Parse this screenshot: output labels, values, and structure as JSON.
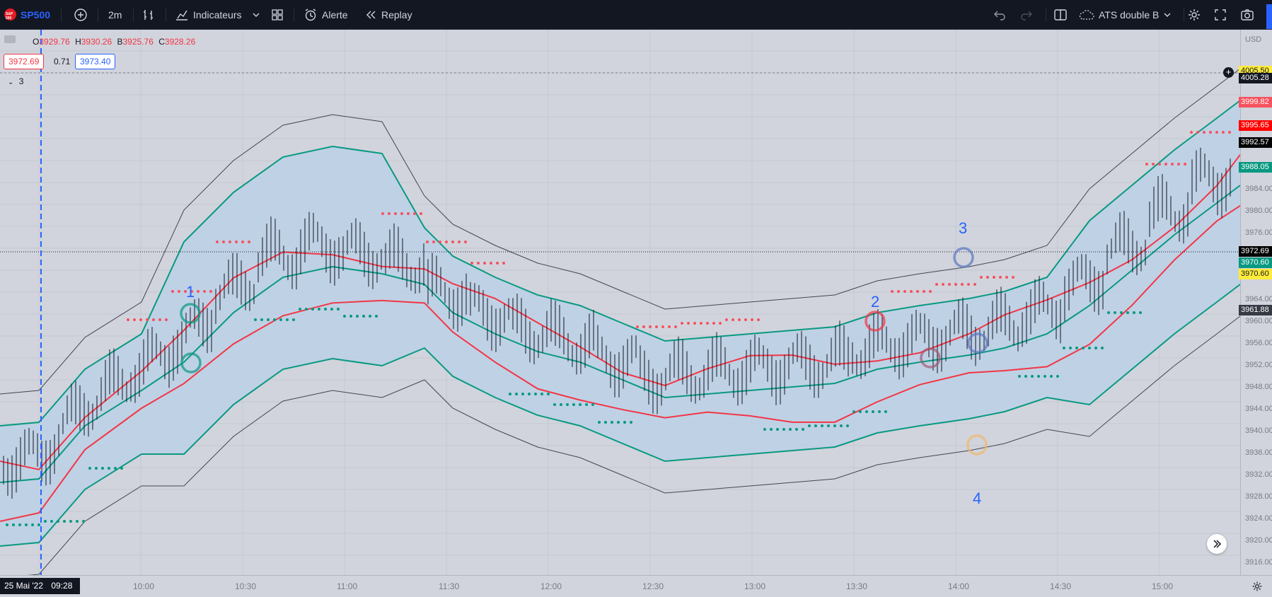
{
  "toolbar": {
    "logo_text": "S&P 500",
    "symbol": "SP500",
    "interval": "2m",
    "indicators_label": "Indicateurs",
    "alert_label": "Alerte",
    "replay_label": "Replay",
    "layout_name": "ATS double B"
  },
  "legend": {
    "open_label": "O",
    "open": "3929.76",
    "high_label": "H",
    "high": "3930.26",
    "low_label": "B",
    "low": "3925.76",
    "close_label": "C",
    "close": "3928.26",
    "sell_price": "3972.69",
    "spread": "0.71",
    "buy_price": "3973.40",
    "indicator_count": "3"
  },
  "price_scale": {
    "currency": "USD",
    "ticks": [
      "3984.00",
      "3980.00",
      "3976.00",
      "3964.00",
      "3960.00",
      "3956.00",
      "3952.00",
      "3948.00",
      "3944.00",
      "3940.00",
      "3936.00",
      "3932.00",
      "3928.00",
      "3924.00",
      "3920.00",
      "3916.00"
    ],
    "tags": [
      {
        "value": "4005.50",
        "bg": "#ffeb3b",
        "fg": "#131722"
      },
      {
        "value": "4005.28",
        "bg": "#131722",
        "fg": "#ffffff"
      },
      {
        "value": "3999.82",
        "bg": "#f7525f",
        "fg": "#ffffff"
      },
      {
        "value": "3995.65",
        "bg": "#ff0000",
        "fg": "#ffffff"
      },
      {
        "value": "3992.57",
        "bg": "#000000",
        "fg": "#ffffff"
      },
      {
        "value": "3988.05",
        "bg": "#089981",
        "fg": "#ffffff"
      },
      {
        "value": "3972.69",
        "bg": "#000000",
        "fg": "#ffffff"
      },
      {
        "value": "3970.60",
        "bg": "#089981",
        "fg": "#ffffff"
      },
      {
        "value": "3970.60",
        "bg": "#ffeb3b",
        "fg": "#131722"
      },
      {
        "value": "3961.88",
        "bg": "#363a45",
        "fg": "#ffffff"
      }
    ]
  },
  "time_axis": {
    "current_date": "25 Mai '22",
    "current_time": "09:28",
    "labels": [
      "10:00",
      "10:30",
      "11:00",
      "11:30",
      "12:00",
      "12:30",
      "13:00",
      "13:30",
      "14:00",
      "14:30",
      "15:00"
    ]
  },
  "annotations": [
    "1",
    "2",
    "3",
    "4"
  ],
  "colors": {
    "accent": "#2962ff",
    "bull": "#089981",
    "bear": "#f23645",
    "band_fill": "#bcd0e6",
    "chart_bg": "#d1d4dc"
  }
}
